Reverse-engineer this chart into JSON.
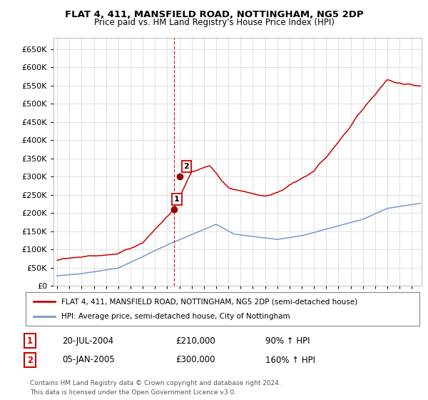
{
  "title": "FLAT 4, 411, MANSFIELD ROAD, NOTTINGHAM, NG5 2DP",
  "subtitle": "Price paid vs. HM Land Registry's House Price Index (HPI)",
  "legend_red": "FLAT 4, 411, MANSFIELD ROAD, NOTTINGHAM, NG5 2DP (semi-detached house)",
  "legend_blue": "HPI: Average price, semi-detached house, City of Nottingham",
  "t1_num": "1",
  "t1_date": "20-JUL-2004",
  "t1_price": "£210,000",
  "t1_hpi": "90% ↑ HPI",
  "t1_x": 2004.54,
  "t1_y": 210000,
  "t2_num": "2",
  "t2_date": "05-JAN-2005",
  "t2_price": "£300,000",
  "t2_hpi": "160% ↑ HPI",
  "t2_x": 2005.01,
  "t2_y": 300000,
  "footnote": "Contains HM Land Registry data © Crown copyright and database right 2024.\nThis data is licensed under the Open Government Licence v3.0.",
  "ylim": [
    0,
    680000
  ],
  "yticks": [
    0,
    50000,
    100000,
    150000,
    200000,
    250000,
    300000,
    350000,
    400000,
    450000,
    500000,
    550000,
    600000,
    650000
  ],
  "red_color": "#cc0000",
  "blue_color": "#7799cc",
  "vline_color": "#cc0000",
  "marker_color": "#990000",
  "background_color": "#ffffff",
  "grid_color": "#e0e0e0",
  "xlim_left": 1994.7,
  "xlim_right": 2024.8
}
